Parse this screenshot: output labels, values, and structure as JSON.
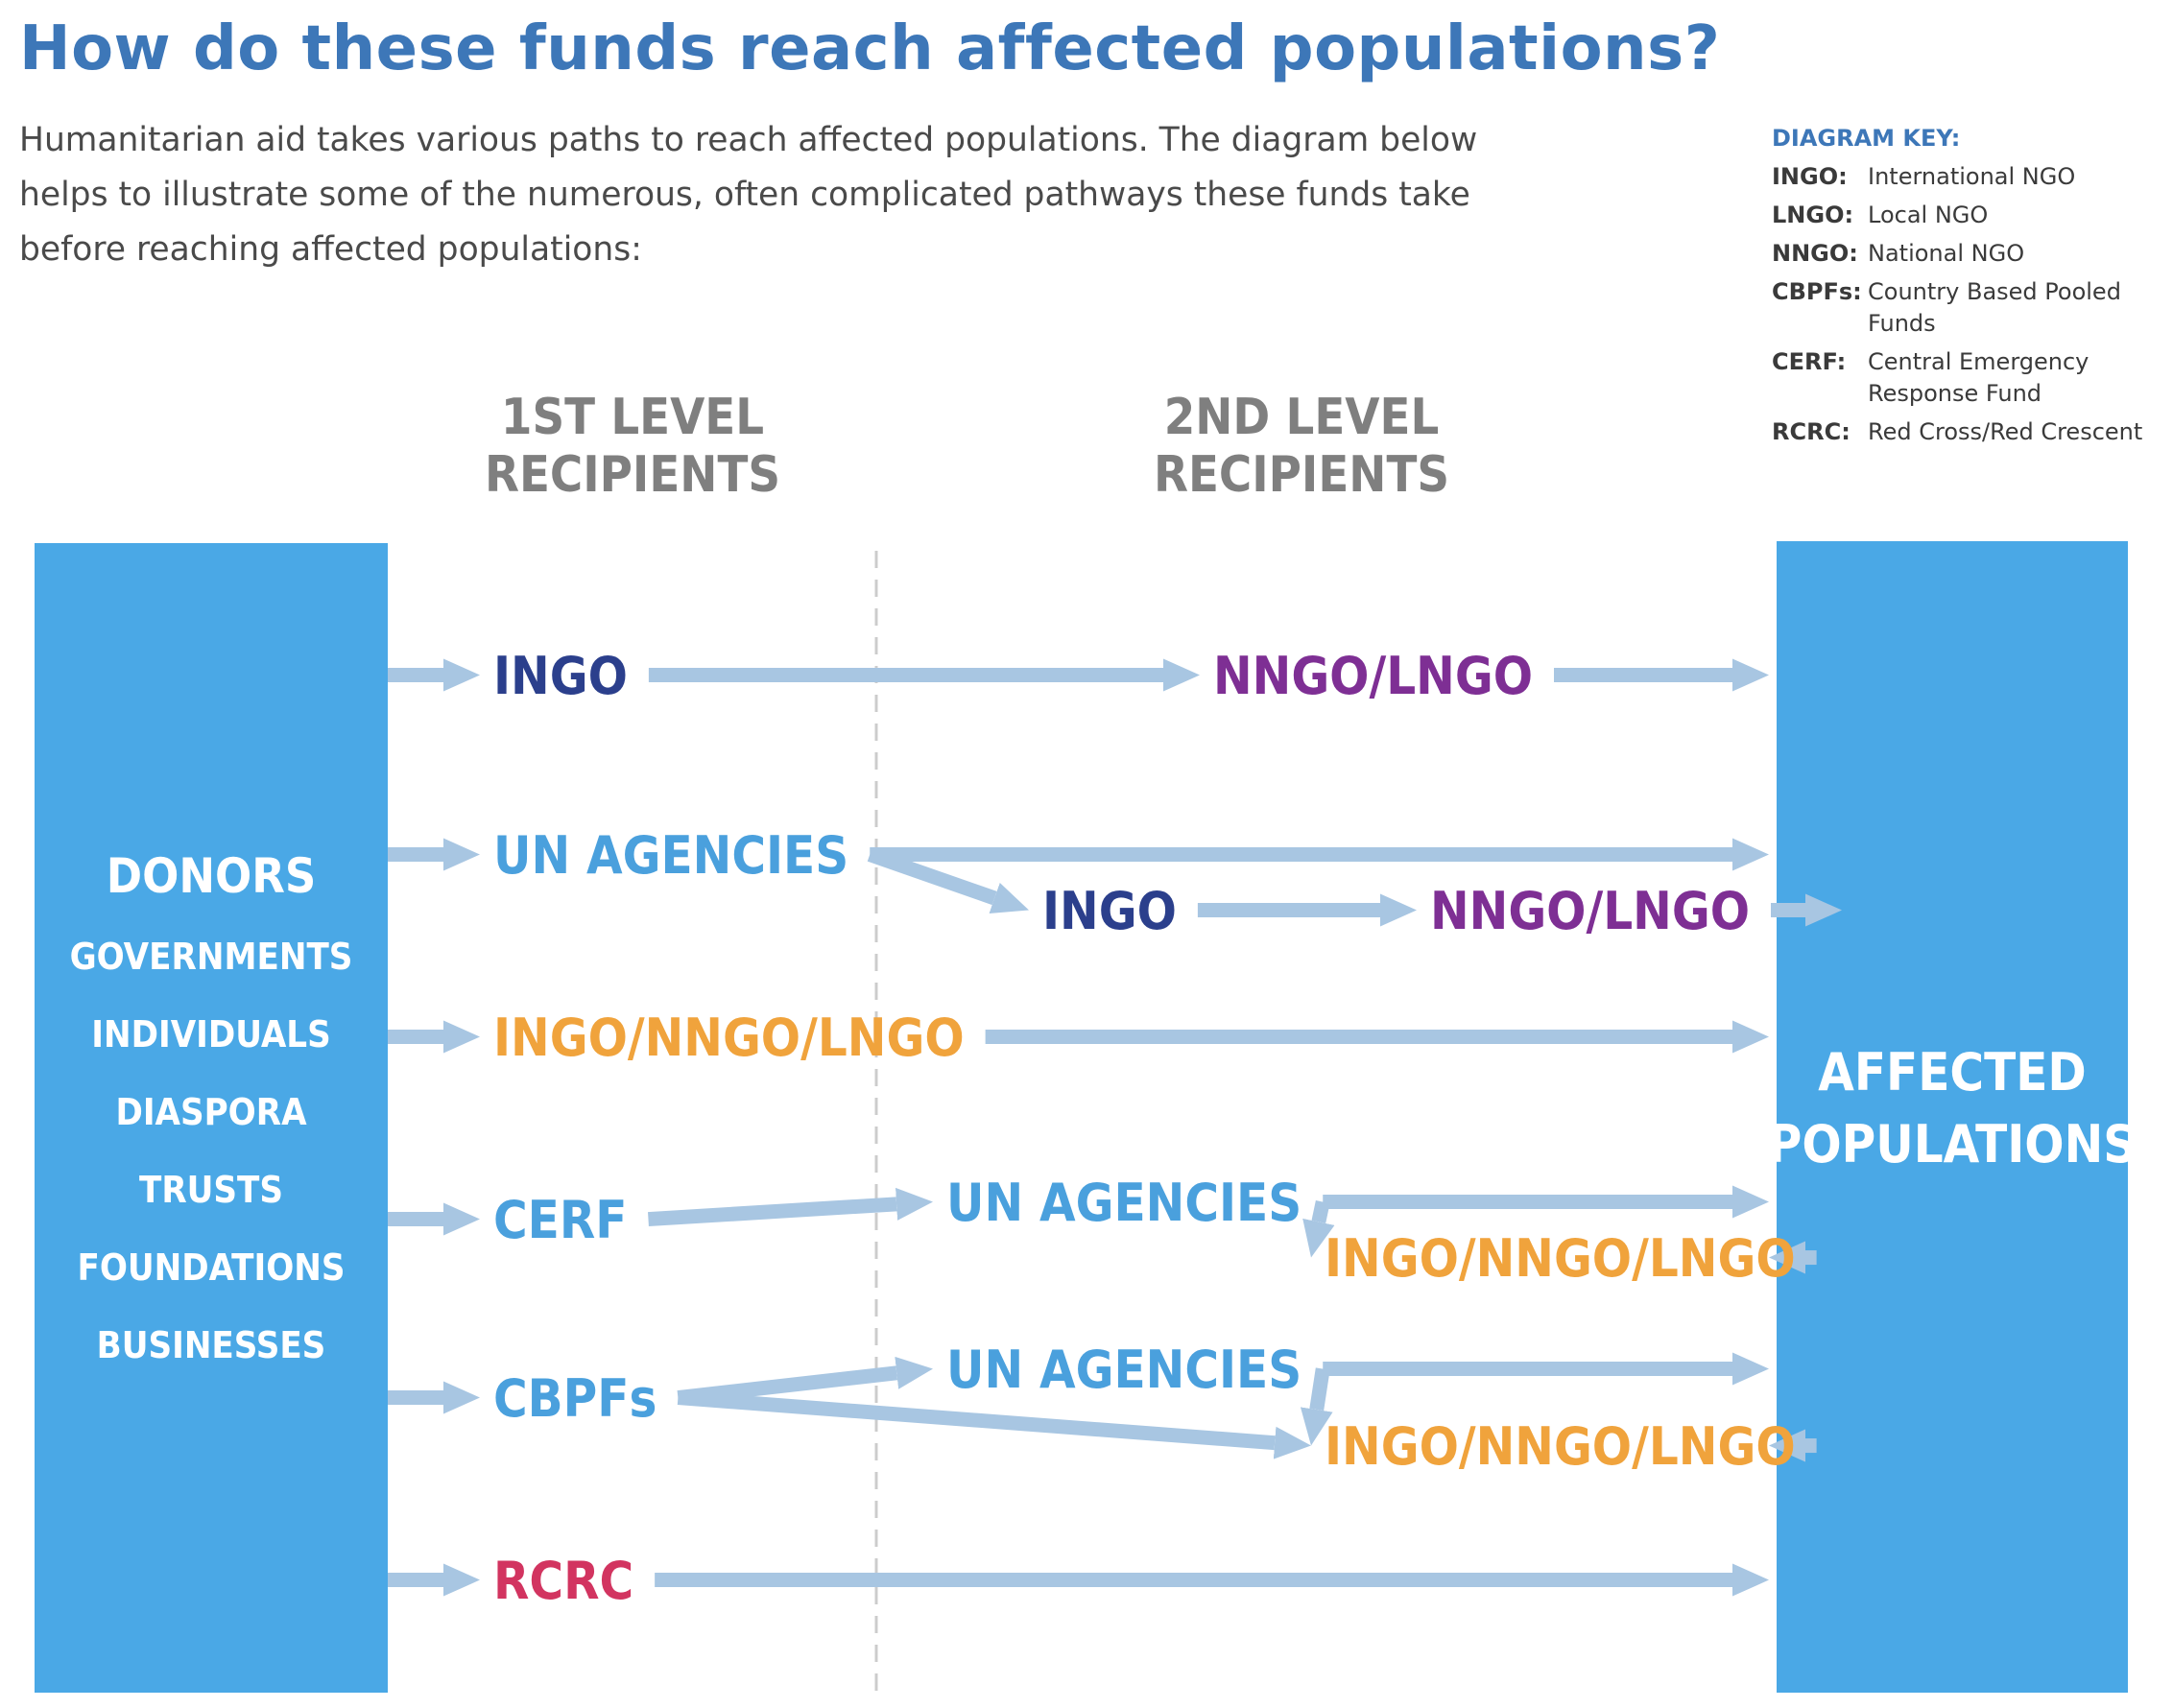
{
  "title": "How do these funds reach affected populations?",
  "intro": "Humanitarian aid takes various paths to reach affected populations. The diagram below helps to illustrate some of the numerous, often complicated pathways these funds take before reaching affected populations:",
  "key": {
    "heading": "DIAGRAM KEY:",
    "items": [
      {
        "abbr": "INGO:",
        "definition": "International NGO"
      },
      {
        "abbr": "LNGO:",
        "definition": "Local NGO"
      },
      {
        "abbr": "NNGO:",
        "definition": "National NGO"
      },
      {
        "abbr": "CBPFs:",
        "definition": "Country Based Pooled Funds"
      },
      {
        "abbr": "CERF:",
        "definition": "Central Emergency Response Fund"
      },
      {
        "abbr": "RCRC:",
        "definition": "Red Cross/Red Crescent"
      }
    ]
  },
  "columns": {
    "first_level": [
      "1ST LEVEL",
      "RECIPIENTS"
    ],
    "second_level": [
      "2ND LEVEL",
      "RECIPIENTS"
    ]
  },
  "donors": {
    "heading": "DONORS",
    "items": [
      "GOVERNMENTS",
      "INDIVIDUALS",
      "DIASPORA",
      "TRUSTS",
      "FOUNDATIONS",
      "BUSINESSES"
    ]
  },
  "affected": [
    "AFFECTED",
    "POPULATIONS"
  ],
  "colors": {
    "block": "#4aa8e6",
    "arrow": "#a8c6e2",
    "title": "#3d77b8",
    "heading_gray": "#7f7f7f",
    "ingo_navy": "#2b3f8c",
    "nngo_purple": "#7e2f94",
    "un_blue": "#4aa0dd",
    "mixed_orange": "#f0a33c",
    "rcrc_red": "#d23460"
  },
  "nodes": [
    {
      "id": "r1-ingo",
      "text": "INGO",
      "color": "ingo_navy"
    },
    {
      "id": "r1-nngo",
      "text": "NNGO/LNGO",
      "color": "nngo_purple"
    },
    {
      "id": "r2-un",
      "text": "UN AGENCIES",
      "color": "un_blue"
    },
    {
      "id": "r2-ingo",
      "text": "INGO",
      "color": "ingo_navy"
    },
    {
      "id": "r2-nngo",
      "text": "NNGO/LNGO",
      "color": "nngo_purple"
    },
    {
      "id": "r3-mixed",
      "text": "INGO/NNGO/LNGO",
      "color": "mixed_orange"
    },
    {
      "id": "r4-cerf",
      "text": "CERF",
      "color": "un_blue"
    },
    {
      "id": "r4-un",
      "text": "UN AGENCIES",
      "color": "un_blue"
    },
    {
      "id": "r4-mixed",
      "text": "INGO/NNGO/LNGO",
      "color": "mixed_orange"
    },
    {
      "id": "r5-cbpf",
      "text": "CBPFs",
      "color": "un_blue"
    },
    {
      "id": "r5-un",
      "text": "UN AGENCIES",
      "color": "un_blue"
    },
    {
      "id": "r5-mixed",
      "text": "INGO/NNGO/LNGO",
      "color": "mixed_orange"
    },
    {
      "id": "r6-rcrc",
      "text": "RCRC",
      "color": "rcrc_red"
    }
  ],
  "edges": [
    {
      "from": "donors",
      "to": "r1-ingo"
    },
    {
      "from": "r1-ingo",
      "to": "r1-nngo"
    },
    {
      "from": "r1-nngo",
      "to": "affected"
    },
    {
      "from": "donors",
      "to": "r2-un"
    },
    {
      "from": "r2-un",
      "to": "affected"
    },
    {
      "from": "r2-un",
      "to": "r2-ingo"
    },
    {
      "from": "r2-ingo",
      "to": "r2-nngo"
    },
    {
      "from": "r2-nngo",
      "to": "affected"
    },
    {
      "from": "donors",
      "to": "r3-mixed"
    },
    {
      "from": "r3-mixed",
      "to": "affected"
    },
    {
      "from": "donors",
      "to": "r4-cerf"
    },
    {
      "from": "r4-cerf",
      "to": "r4-un"
    },
    {
      "from": "r4-un",
      "to": "affected"
    },
    {
      "from": "r4-un",
      "to": "r4-mixed"
    },
    {
      "from": "r4-mixed",
      "to": "affected"
    },
    {
      "from": "donors",
      "to": "r5-cbpf"
    },
    {
      "from": "r5-cbpf",
      "to": "r5-un"
    },
    {
      "from": "r5-cbpf",
      "to": "r5-mixed"
    },
    {
      "from": "r5-un",
      "to": "affected"
    },
    {
      "from": "r5-un",
      "to": "r5-mixed"
    },
    {
      "from": "r5-mixed",
      "to": "affected"
    },
    {
      "from": "donors",
      "to": "r6-rcrc"
    },
    {
      "from": "r6-rcrc",
      "to": "affected"
    }
  ]
}
